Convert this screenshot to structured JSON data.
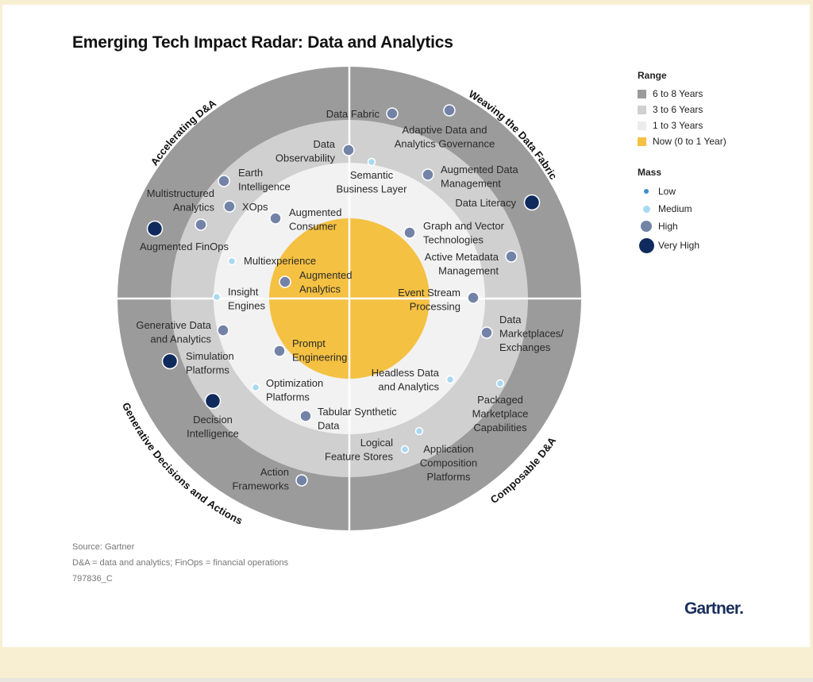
{
  "title": "Emerging Tech Impact Radar: Data and Analytics",
  "colors": {
    "range_6_8": "#9b9b9b",
    "range_3_6": "#d0d0d0",
    "range_1_3": "#f2f2f2",
    "range_now": "#f5c142",
    "mass_low": "#3b8fd0",
    "mass_medium": "#a9d9f2",
    "mass_high": "#7383a8",
    "mass_very_high": "#0f2a5c"
  },
  "legend": {
    "range_title": "Range",
    "ranges": [
      {
        "key": "6-8",
        "label": "6 to 8 Years"
      },
      {
        "key": "3-6",
        "label": "3 to 6 Years"
      },
      {
        "key": "1-3",
        "label": "1 to 3 Years"
      },
      {
        "key": "now",
        "label": "Now (0 to 1 Year)"
      }
    ],
    "mass_title": "Mass",
    "masses": [
      {
        "key": "low",
        "label": "Low"
      },
      {
        "key": "medium",
        "label": "Medium"
      },
      {
        "key": "high",
        "label": "High"
      },
      {
        "key": "very_high",
        "label": "Very High"
      }
    ]
  },
  "quadrants": [
    "Accelerating D&A",
    "Weaving the Data Fabric",
    "Generative Decisions and Actions",
    "Composable D&A"
  ],
  "technologies": [
    {
      "lines": [
        "Data Fabric"
      ],
      "mass": "high",
      "range": "6-8",
      "quadrant": "Weaving the Data Fabric"
    },
    {
      "lines": [
        "Adaptive Data and",
        "Analytics Governance"
      ],
      "mass": "high",
      "range": "6-8",
      "quadrant": "Weaving the Data Fabric"
    },
    {
      "lines": [
        "Data",
        "Observability"
      ],
      "mass": "high",
      "range": "3-6",
      "quadrant": "Accelerating D&A"
    },
    {
      "lines": [
        "Semantic",
        "Business Layer"
      ],
      "mass": "medium",
      "range": "3-6",
      "quadrant": "Weaving the Data Fabric"
    },
    {
      "lines": [
        "Augmented Data",
        "Management"
      ],
      "mass": "high",
      "range": "3-6",
      "quadrant": "Weaving the Data Fabric"
    },
    {
      "lines": [
        "Data Literacy"
      ],
      "mass": "very_high",
      "range": "6-8",
      "quadrant": "Weaving the Data Fabric"
    },
    {
      "lines": [
        "Earth",
        "Intelligence"
      ],
      "mass": "high",
      "range": "3-6",
      "quadrant": "Accelerating D&A"
    },
    {
      "lines": [
        "Multistructured",
        "Analytics"
      ],
      "mass": "high",
      "range": "3-6",
      "quadrant": "Accelerating D&A"
    },
    {
      "lines": [
        "XOps"
      ],
      "mass": "high",
      "range": "3-6",
      "quadrant": "Accelerating D&A"
    },
    {
      "lines": [
        "Augmented FinOps"
      ],
      "mass": "very_high",
      "range": "6-8",
      "quadrant": "Accelerating D&A"
    },
    {
      "lines": [
        "Augmented",
        "Consumer"
      ],
      "mass": "high",
      "range": "1-3",
      "quadrant": "Accelerating D&A"
    },
    {
      "lines": [
        "Graph and Vector",
        "Technologies"
      ],
      "mass": "high",
      "range": "1-3",
      "quadrant": "Weaving the Data Fabric"
    },
    {
      "lines": [
        "Active Metadata",
        "Management"
      ],
      "mass": "high",
      "range": "3-6",
      "quadrant": "Weaving the Data Fabric"
    },
    {
      "lines": [
        "Multiexperience"
      ],
      "mass": "medium",
      "range": "1-3",
      "quadrant": "Accelerating D&A"
    },
    {
      "lines": [
        "Augmented",
        "Analytics"
      ],
      "mass": "high",
      "range": "now",
      "quadrant": "Accelerating D&A"
    },
    {
      "lines": [
        "Insight",
        "Engines"
      ],
      "mass": "medium",
      "range": "1-3",
      "quadrant": "Accelerating D&A"
    },
    {
      "lines": [
        "Event Stream",
        "Processing"
      ],
      "mass": "high",
      "range": "1-3",
      "quadrant": "Weaving the Data Fabric"
    },
    {
      "lines": [
        "Generative Data",
        "and Analytics"
      ],
      "mass": "high",
      "range": "3-6",
      "quadrant": "Generative Decisions and Actions"
    },
    {
      "lines": [
        "Data",
        "Marketplaces/",
        "Exchanges"
      ],
      "mass": "high",
      "range": "3-6",
      "quadrant": "Composable D&A"
    },
    {
      "lines": [
        "Simulation",
        "Platforms"
      ],
      "mass": "very_high",
      "range": "6-8",
      "quadrant": "Generative Decisions and Actions"
    },
    {
      "lines": [
        "Prompt",
        "Engineering"
      ],
      "mass": "high",
      "range": "now",
      "quadrant": "Generative Decisions and Actions"
    },
    {
      "lines": [
        "Headless Data",
        "and Analytics"
      ],
      "mass": "medium",
      "range": "1-3",
      "quadrant": "Composable D&A"
    },
    {
      "lines": [
        "Optimization",
        "Platforms"
      ],
      "mass": "medium",
      "range": "1-3",
      "quadrant": "Generative Decisions and Actions"
    },
    {
      "lines": [
        "Packaged",
        "Marketplace",
        "Capabilities"
      ],
      "mass": "medium",
      "range": "3-6",
      "quadrant": "Composable D&A"
    },
    {
      "lines": [
        "Decision",
        "Intelligence"
      ],
      "mass": "very_high",
      "range": "3-6",
      "quadrant": "Generative Decisions and Actions"
    },
    {
      "lines": [
        "Tabular Synthetic",
        "Data"
      ],
      "mass": "high",
      "range": "1-3",
      "quadrant": "Generative Decisions and Actions"
    },
    {
      "lines": [
        "Application",
        "Composition",
        "Platforms"
      ],
      "mass": "medium",
      "range": "3-6",
      "quadrant": "Composable D&A"
    },
    {
      "lines": [
        "Logical",
        "Feature Stores"
      ],
      "mass": "medium",
      "range": "3-6",
      "quadrant": "Composable D&A"
    },
    {
      "lines": [
        "Action",
        "Frameworks"
      ],
      "mass": "high",
      "range": "6-8",
      "quadrant": "Generative Decisions and Actions"
    }
  ],
  "notes": {
    "source": "Source: Gartner",
    "abbreviations": "D&A = data and analytics; FinOps = financial operations",
    "doc_id": "797836_C"
  },
  "logo": "Gartner."
}
